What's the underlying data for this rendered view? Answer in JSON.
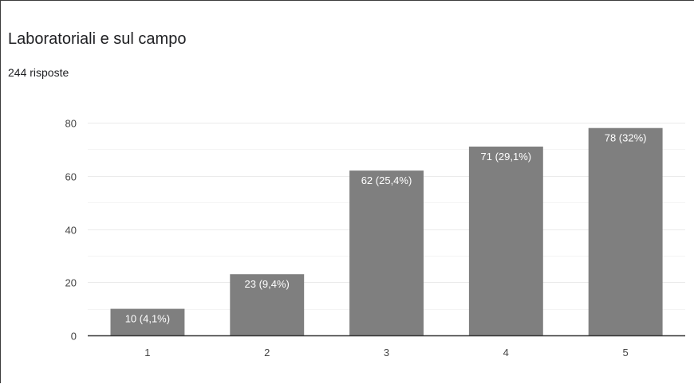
{
  "header": {
    "title": "Laboratoriali e sul campo",
    "responses": "244 risposte"
  },
  "colors": {
    "bar": "#7f7f7f",
    "grid": "#ebebeb",
    "axis": "#333333",
    "tick_text": "#444444",
    "label_text": "#ffffff"
  },
  "chart_data": {
    "type": "bar",
    "title": "Laboratoriali e sul campo",
    "subtitle": "244 risposte",
    "categories": [
      "1",
      "2",
      "3",
      "4",
      "5"
    ],
    "values": [
      10,
      23,
      62,
      71,
      78
    ],
    "labels": [
      "10 (4,1%)",
      "23 (9,4%)",
      "62 (25,4%)",
      "71 (29,1%)",
      "78 (32%)"
    ],
    "ylim": [
      0,
      80
    ],
    "yticks": [
      0,
      20,
      40,
      60,
      80
    ],
    "grid": true,
    "legend": "none"
  }
}
